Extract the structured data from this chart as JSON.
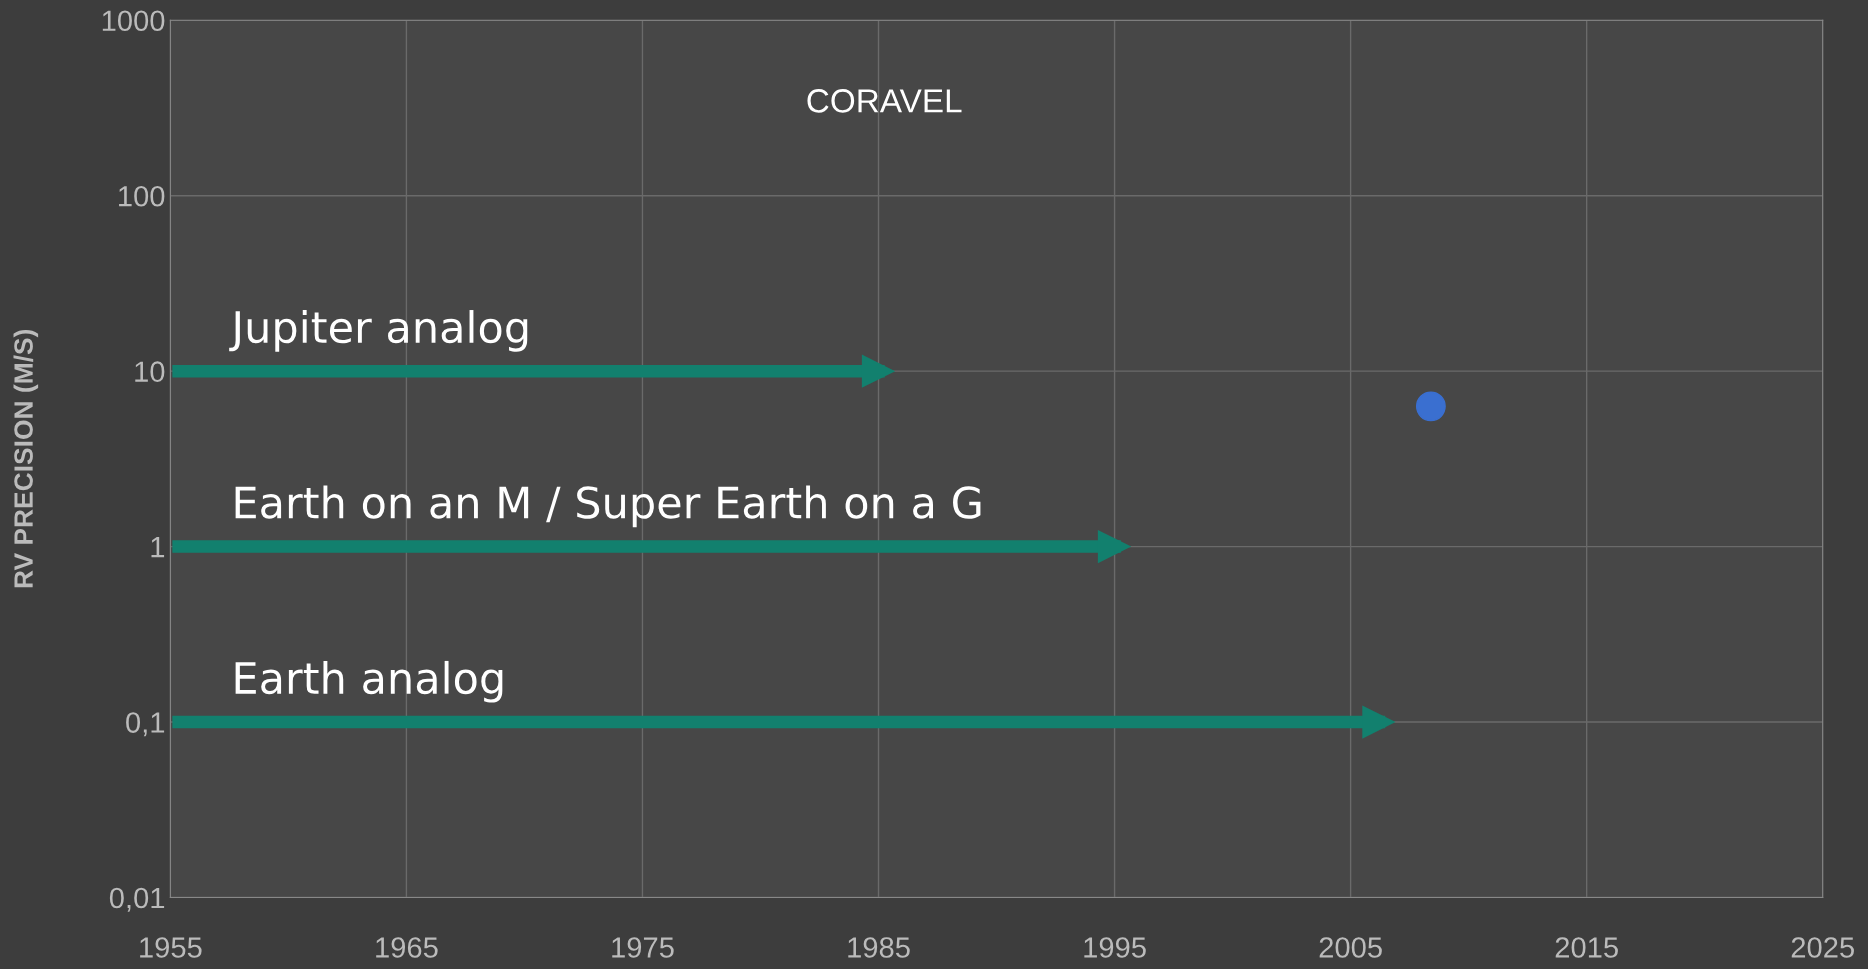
{
  "chart_data": {
    "type": "scatter",
    "ylabel": "RV PRECISION (M/S)",
    "log": "y",
    "grid": true,
    "legend": false,
    "xlim": [
      1955,
      2025
    ],
    "xticks": [
      1955,
      1965,
      1975,
      1985,
      1995,
      2005,
      2015,
      2025
    ],
    "ylim": [
      0.01,
      1000
    ],
    "yticks": [
      {
        "value": 0.01,
        "label": "0,01"
      },
      {
        "value": 0.1,
        "label": "0,1"
      },
      1,
      10,
      100,
      1000
    ],
    "annotations": [
      "CORAVEL"
    ],
    "series": [
      {
        "color": "#3a6fd0",
        "marker": "circle",
        "x": [
          2008.4
        ],
        "values": [
          6.3
        ]
      },
      {
        "type": "line",
        "name": "Jupiter analog",
        "color": "#12806e",
        "x": [
          1955.35,
          1985
        ],
        "values": [
          10,
          10
        ]
      },
      {
        "type": "line",
        "name": "Earth on an M / Super Earth on a G",
        "color": "#12806e",
        "x": [
          1955.35,
          1995
        ],
        "values": [
          1,
          1
        ]
      },
      {
        "type": "line",
        "name": "Earth analog",
        "color": "#12806e",
        "x": [
          1955.35,
          2006.2
        ],
        "values": [
          0.1,
          0.1
        ]
      }
    ]
  }
}
